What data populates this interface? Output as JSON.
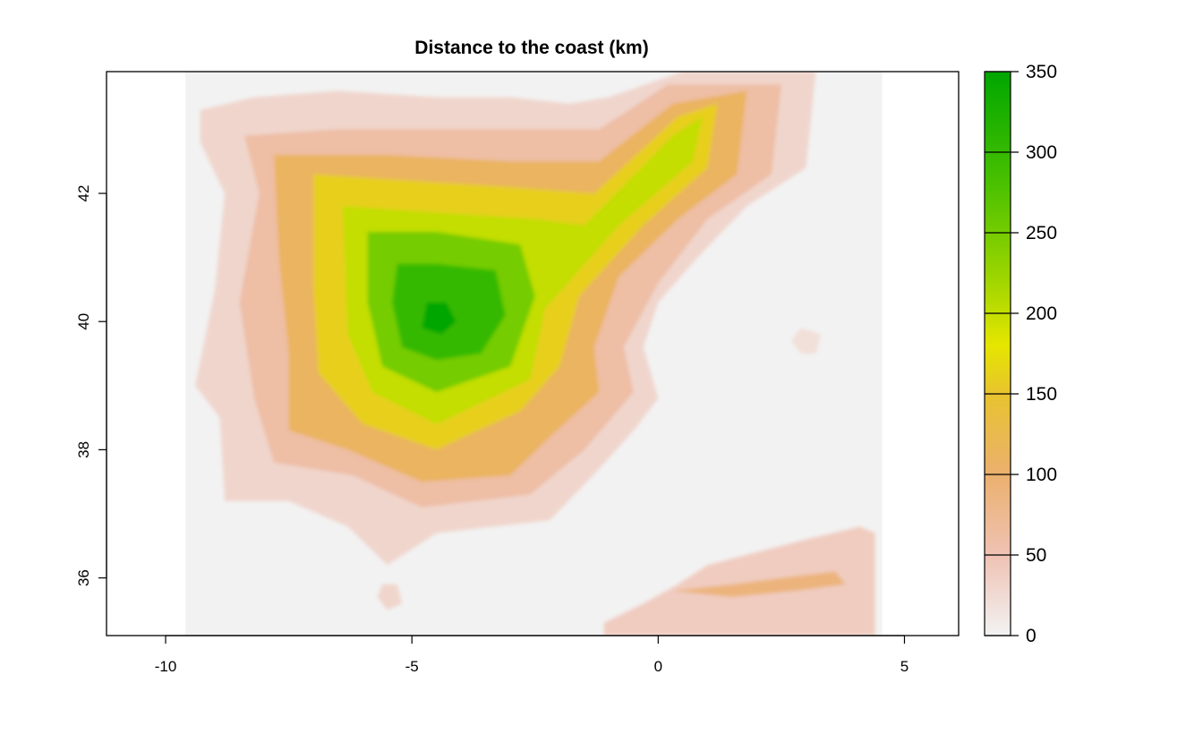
{
  "chart_data": {
    "type": "heatmap",
    "title": "Distance to the coast (km)",
    "xlabel": "",
    "ylabel": "",
    "xlim": [
      -11.2,
      6.1
    ],
    "ylim": [
      35.1,
      43.9
    ],
    "x_ticks": [
      -10,
      -5,
      0,
      5
    ],
    "y_ticks": [
      36,
      38,
      40,
      42
    ],
    "x_tick_labels": [
      "-10",
      "-5",
      "0",
      "5"
    ],
    "y_tick_labels": [
      "36",
      "38",
      "40",
      "42"
    ],
    "raster_extent": {
      "xmin": -9.6,
      "xmax": 4.55,
      "ymin": 35.1,
      "ymax": 43.9
    },
    "grid": false,
    "legend": {
      "type": "colorbar",
      "placement": "right",
      "range": [
        0,
        350
      ],
      "ticks": [
        0,
        50,
        100,
        150,
        200,
        250,
        300,
        350
      ],
      "tick_labels": [
        "0",
        "50",
        "100",
        "150",
        "200",
        "250",
        "300",
        "350"
      ]
    },
    "color_scale": [
      {
        "value": 0,
        "color": "#f2f2f2"
      },
      {
        "value": 50,
        "color": "#efc2b3"
      },
      {
        "value": 100,
        "color": "#ebb06e"
      },
      {
        "value": 150,
        "color": "#e8c32e"
      },
      {
        "value": 180,
        "color": "#e6e600"
      },
      {
        "value": 220,
        "color": "#a0d600"
      },
      {
        "value": 280,
        "color": "#4ac100"
      },
      {
        "value": 350,
        "color": "#00a600"
      }
    ],
    "regions": [
      {
        "name": "peninsula-landmass",
        "value": 30,
        "kind": "polygon",
        "points": [
          [
            -9.3,
            43.3
          ],
          [
            -8.2,
            43.5
          ],
          [
            -6.5,
            43.6
          ],
          [
            -4.5,
            43.5
          ],
          [
            -3,
            43.5
          ],
          [
            -1.8,
            43.4
          ],
          [
            -1,
            43.5
          ],
          [
            0.5,
            43.9
          ],
          [
            3.2,
            43.9
          ],
          [
            3.0,
            42.4
          ],
          [
            1.8,
            41.8
          ],
          [
            0.8,
            41.0
          ],
          [
            0,
            40.3
          ],
          [
            -0.3,
            39.6
          ],
          [
            0,
            38.8
          ],
          [
            -0.5,
            38.3
          ],
          [
            -1.2,
            37.7
          ],
          [
            -2.2,
            36.9
          ],
          [
            -4.5,
            36.7
          ],
          [
            -5.5,
            36.2
          ],
          [
            -6.3,
            36.8
          ],
          [
            -7.5,
            37.2
          ],
          [
            -8.8,
            37.2
          ],
          [
            -8.9,
            38.5
          ],
          [
            -9.4,
            39.0
          ],
          [
            -9.0,
            40.5
          ],
          [
            -8.8,
            42.0
          ],
          [
            -9.3,
            42.8
          ]
        ]
      },
      {
        "name": "distance-50",
        "value": 60,
        "kind": "polygon",
        "points": [
          [
            -8.4,
            42.9
          ],
          [
            -6.5,
            43.0
          ],
          [
            -4.5,
            43.0
          ],
          [
            -2.5,
            43.0
          ],
          [
            -1.2,
            43.0
          ],
          [
            0.2,
            43.7
          ],
          [
            2.5,
            43.7
          ],
          [
            2.3,
            42.3
          ],
          [
            1.0,
            41.6
          ],
          [
            0,
            40.6
          ],
          [
            -0.7,
            39.6
          ],
          [
            -0.5,
            38.9
          ],
          [
            -1.5,
            38.0
          ],
          [
            -2.6,
            37.3
          ],
          [
            -4.8,
            37.1
          ],
          [
            -6.2,
            37.6
          ],
          [
            -7.8,
            37.8
          ],
          [
            -8.2,
            38.8
          ],
          [
            -8.5,
            40.3
          ],
          [
            -8.1,
            42.0
          ]
        ]
      },
      {
        "name": "distance-100",
        "value": 110,
        "kind": "polygon",
        "points": [
          [
            -7.8,
            42.6
          ],
          [
            -5.5,
            42.6
          ],
          [
            -3.0,
            42.5
          ],
          [
            -1.2,
            42.5
          ],
          [
            0.3,
            43.4
          ],
          [
            1.8,
            43.6
          ],
          [
            1.6,
            42.3
          ],
          [
            0.4,
            41.6
          ],
          [
            -0.8,
            40.7
          ],
          [
            -1.3,
            39.6
          ],
          [
            -1.2,
            38.9
          ],
          [
            -2.2,
            38.2
          ],
          [
            -3.0,
            37.6
          ],
          [
            -4.8,
            37.5
          ],
          [
            -6.3,
            38.0
          ],
          [
            -7.5,
            38.3
          ],
          [
            -7.5,
            39.5
          ],
          [
            -7.7,
            41.0
          ]
        ]
      },
      {
        "name": "distance-150",
        "value": 160,
        "kind": "polygon",
        "points": [
          [
            -7.0,
            42.3
          ],
          [
            -5.0,
            42.2
          ],
          [
            -3.0,
            42.1
          ],
          [
            -1.3,
            42.0
          ],
          [
            0.4,
            43.2
          ],
          [
            1.2,
            43.4
          ],
          [
            1.0,
            42.4
          ],
          [
            -0.3,
            41.5
          ],
          [
            -1.6,
            40.4
          ],
          [
            -2.0,
            39.3
          ],
          [
            -2.8,
            38.6
          ],
          [
            -4.5,
            38.0
          ],
          [
            -6.0,
            38.4
          ],
          [
            -6.9,
            39.2
          ],
          [
            -7.0,
            40.5
          ]
        ]
      },
      {
        "name": "distance-200",
        "value": 200,
        "kind": "polygon",
        "points": [
          [
            -6.4,
            41.8
          ],
          [
            -4.5,
            41.7
          ],
          [
            -2.5,
            41.6
          ],
          [
            -1.5,
            41.5
          ],
          [
            0.3,
            42.9
          ],
          [
            0.9,
            43.2
          ],
          [
            0.7,
            42.5
          ],
          [
            -0.8,
            41.5
          ],
          [
            -2.3,
            40.2
          ],
          [
            -2.6,
            39.1
          ],
          [
            -4.5,
            38.4
          ],
          [
            -5.8,
            38.9
          ],
          [
            -6.3,
            39.8
          ]
        ]
      },
      {
        "name": "distance-250",
        "value": 250,
        "kind": "polygon",
        "points": [
          [
            -5.9,
            41.4
          ],
          [
            -4.5,
            41.4
          ],
          [
            -2.8,
            41.2
          ],
          [
            -2.5,
            40.4
          ],
          [
            -3.0,
            39.3
          ],
          [
            -4.5,
            38.9
          ],
          [
            -5.6,
            39.3
          ],
          [
            -5.9,
            40.3
          ]
        ]
      },
      {
        "name": "distance-300",
        "value": 300,
        "kind": "polygon",
        "points": [
          [
            -5.3,
            40.9
          ],
          [
            -4.5,
            40.9
          ],
          [
            -3.3,
            40.8
          ],
          [
            -3.1,
            40.1
          ],
          [
            -3.6,
            39.5
          ],
          [
            -4.5,
            39.4
          ],
          [
            -5.2,
            39.6
          ],
          [
            -5.4,
            40.3
          ]
        ]
      },
      {
        "name": "distance-350",
        "value": 350,
        "kind": "polygon",
        "points": [
          [
            -4.7,
            40.3
          ],
          [
            -4.3,
            40.3
          ],
          [
            -4.1,
            40.0
          ],
          [
            -4.4,
            39.8
          ],
          [
            -4.8,
            39.9
          ]
        ]
      },
      {
        "name": "north-africa-coast",
        "value": 40,
        "kind": "polygon",
        "points": [
          [
            -1.1,
            35.3
          ],
          [
            -0.3,
            35.6
          ],
          [
            0.4,
            35.9
          ],
          [
            1.0,
            36.2
          ],
          [
            2.0,
            36.4
          ],
          [
            3.0,
            36.6
          ],
          [
            4.1,
            36.8
          ],
          [
            4.4,
            36.7
          ],
          [
            4.4,
            35.1
          ],
          [
            -1.1,
            35.1
          ]
        ]
      },
      {
        "name": "north-africa-inland",
        "value": 90,
        "kind": "polygon",
        "points": [
          [
            0.3,
            35.8
          ],
          [
            1.5,
            35.9
          ],
          [
            2.5,
            36.0
          ],
          [
            3.6,
            36.1
          ],
          [
            3.8,
            35.9
          ],
          [
            2.8,
            35.8
          ],
          [
            1.5,
            35.7
          ]
        ]
      },
      {
        "name": "balearic-islands",
        "value": 20,
        "kind": "polygon",
        "points": [
          [
            2.7,
            39.7
          ],
          [
            2.9,
            39.9
          ],
          [
            3.3,
            39.8
          ],
          [
            3.2,
            39.5
          ],
          [
            2.9,
            39.5
          ]
        ]
      },
      {
        "name": "ceuta-area",
        "value": 30,
        "kind": "polygon",
        "points": [
          [
            -5.6,
            35.9
          ],
          [
            -5.3,
            35.9
          ],
          [
            -5.2,
            35.6
          ],
          [
            -5.5,
            35.5
          ],
          [
            -5.7,
            35.7
          ]
        ]
      }
    ]
  }
}
